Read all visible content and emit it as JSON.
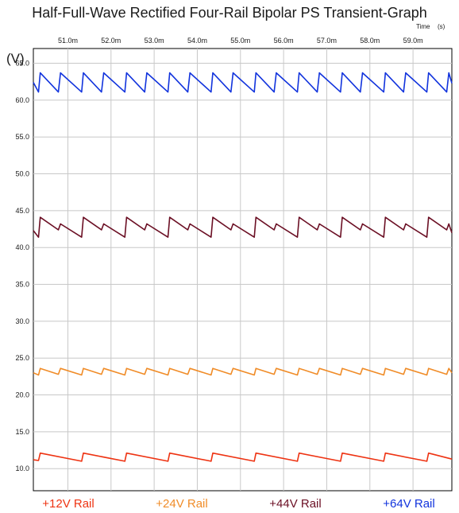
{
  "chart_data": {
    "type": "line",
    "title": "Half-Full-Wave Rectified Four-Rail Bipolar PS Transient-Graph",
    "xlabel": "Time",
    "xunit": "(s)",
    "ylabel": "(V)",
    "xlim": [
      50.2,
      59.9
    ],
    "ylim": [
      7.0,
      67.0
    ],
    "x_ticks": [
      "51.0m",
      "52.0m",
      "53.0m",
      "54.0m",
      "55.0m",
      "56.0m",
      "57.0m",
      "58.0m",
      "59.0m"
    ],
    "x_tick_values": [
      51,
      52,
      53,
      54,
      55,
      56,
      57,
      58,
      59
    ],
    "y_ticks": [
      "10.0",
      "15.0",
      "20.0",
      "25.0",
      "30.0",
      "35.0",
      "40.0",
      "45.0",
      "50.0",
      "55.0",
      "60.0",
      "65.0"
    ],
    "y_tick_values": [
      10,
      15,
      20,
      25,
      30,
      35,
      40,
      45,
      50,
      55,
      60,
      65
    ],
    "grid": true,
    "legend_position": "bottom",
    "series": [
      {
        "name": "+12V Rail",
        "color": "#ee3312",
        "x": [
          50.2,
          50.32,
          50.36,
          51.32,
          51.36,
          52.32,
          52.36,
          53.32,
          53.36,
          54.32,
          54.36,
          55.32,
          55.36,
          56.32,
          56.36,
          57.32,
          57.36,
          58.32,
          58.36,
          59.32,
          59.36,
          59.9
        ],
        "values": [
          11.2,
          11.1,
          12.1,
          11.0,
          12.1,
          11.0,
          12.1,
          11.0,
          12.1,
          11.0,
          12.1,
          11.0,
          12.1,
          11.0,
          12.1,
          11.0,
          12.1,
          11.0,
          12.1,
          11.0,
          12.1,
          11.3
        ]
      },
      {
        "name": "+24V Rail",
        "color": "#f08c28",
        "x": [
          50.2,
          50.32,
          50.36,
          50.78,
          50.83,
          51.32,
          51.36,
          51.78,
          51.83,
          52.32,
          52.36,
          52.78,
          52.83,
          53.32,
          53.36,
          53.78,
          53.83,
          54.32,
          54.36,
          54.78,
          54.83,
          55.32,
          55.36,
          55.78,
          55.83,
          56.32,
          56.36,
          56.78,
          56.83,
          57.32,
          57.36,
          57.78,
          57.83,
          58.32,
          58.36,
          58.78,
          58.83,
          59.32,
          59.36,
          59.78,
          59.83,
          59.9
        ],
        "values": [
          23.0,
          22.7,
          23.6,
          22.8,
          23.6,
          22.7,
          23.6,
          22.8,
          23.6,
          22.7,
          23.6,
          22.8,
          23.6,
          22.7,
          23.6,
          22.8,
          23.6,
          22.7,
          23.6,
          22.8,
          23.6,
          22.7,
          23.6,
          22.8,
          23.6,
          22.7,
          23.6,
          22.8,
          23.6,
          22.7,
          23.6,
          22.8,
          23.6,
          22.7,
          23.6,
          22.8,
          23.6,
          22.7,
          23.6,
          22.8,
          23.6,
          23.0
        ]
      },
      {
        "name": "+44V Rail",
        "color": "#6b0f24",
        "x": [
          50.2,
          50.32,
          50.36,
          50.78,
          50.83,
          51.32,
          51.36,
          51.78,
          51.83,
          52.32,
          52.36,
          52.78,
          52.83,
          53.32,
          53.36,
          53.78,
          53.83,
          54.32,
          54.36,
          54.78,
          54.83,
          55.32,
          55.36,
          55.78,
          55.83,
          56.32,
          56.36,
          56.78,
          56.83,
          57.32,
          57.36,
          57.78,
          57.83,
          58.32,
          58.36,
          58.78,
          58.83,
          59.32,
          59.36,
          59.78,
          59.83,
          59.9
        ],
        "values": [
          42.3,
          41.4,
          44.1,
          42.4,
          43.2,
          41.4,
          44.1,
          42.4,
          43.2,
          41.4,
          44.1,
          42.4,
          43.2,
          41.4,
          44.1,
          42.4,
          43.2,
          41.4,
          44.1,
          42.4,
          43.2,
          41.4,
          44.1,
          42.4,
          43.2,
          41.4,
          44.1,
          42.4,
          43.2,
          41.4,
          44.1,
          42.4,
          43.2,
          41.4,
          44.1,
          42.4,
          43.2,
          41.4,
          44.1,
          42.4,
          43.2,
          42.0
        ]
      },
      {
        "name": "+64V Rail",
        "color": "#1133dd",
        "x": [
          50.2,
          50.32,
          50.36,
          50.78,
          50.83,
          51.32,
          51.36,
          51.78,
          51.83,
          52.32,
          52.36,
          52.78,
          52.83,
          53.32,
          53.36,
          53.78,
          53.83,
          54.32,
          54.36,
          54.78,
          54.83,
          55.32,
          55.36,
          55.78,
          55.83,
          56.32,
          56.36,
          56.78,
          56.83,
          57.32,
          57.36,
          57.78,
          57.83,
          58.32,
          58.36,
          58.78,
          58.83,
          59.32,
          59.36,
          59.78,
          59.83,
          59.9
        ],
        "values": [
          62.4,
          61.1,
          63.7,
          61.1,
          63.7,
          61.1,
          63.7,
          61.1,
          63.7,
          61.1,
          63.7,
          61.1,
          63.7,
          61.1,
          63.7,
          61.1,
          63.7,
          61.1,
          63.7,
          61.1,
          63.7,
          61.1,
          63.7,
          61.1,
          63.7,
          61.1,
          63.7,
          61.1,
          63.7,
          61.1,
          63.7,
          61.1,
          63.7,
          61.1,
          63.7,
          61.1,
          63.7,
          61.1,
          63.7,
          61.1,
          63.7,
          62.3
        ]
      }
    ]
  }
}
